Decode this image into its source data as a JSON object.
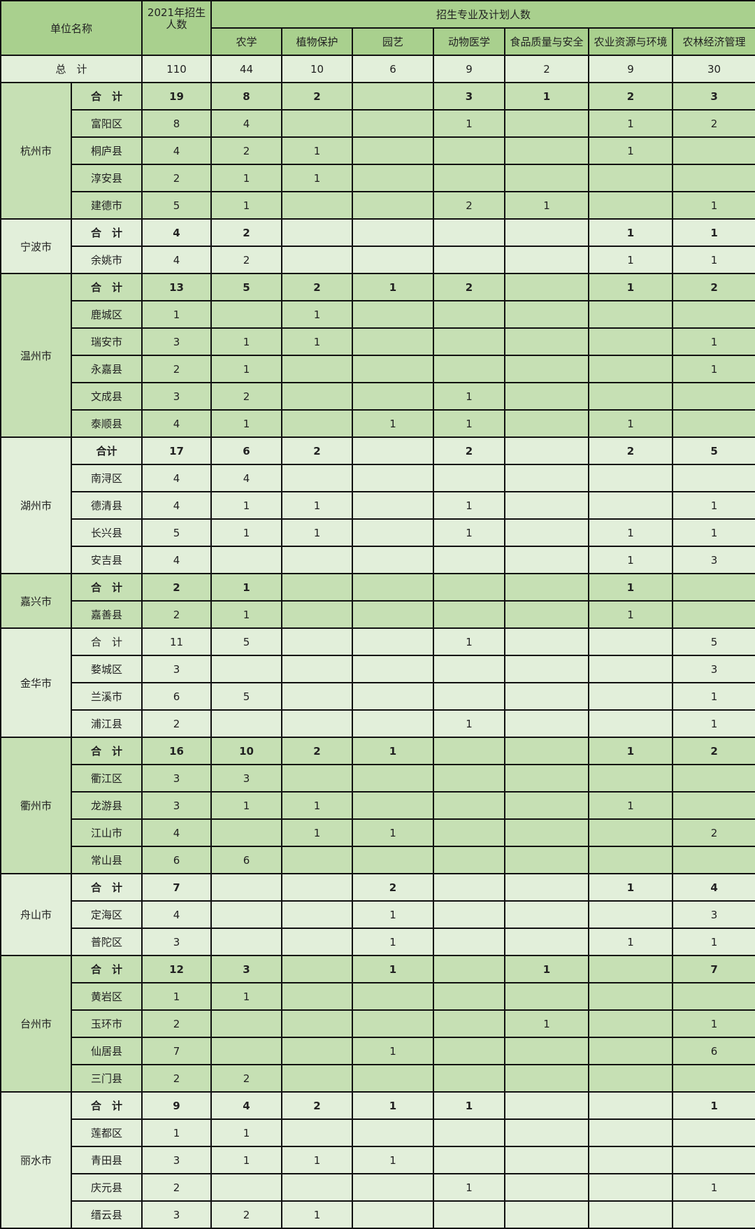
{
  "header": {
    "unit_name": "单位名称",
    "enroll_count": "2021年招生人数",
    "group_title": "招生专业及计划人数",
    "majors": [
      "农学",
      "植物保护",
      "园艺",
      "动物医学",
      "食品质量与安全",
      "农业资源与环境",
      "农林经济管理"
    ]
  },
  "colors": {
    "header": "#a9d08e",
    "light": "#e2efda",
    "mid": "#c6e0b4",
    "border": "#111111"
  },
  "grand_total": {
    "label": "总　计",
    "values": [
      "110",
      "44",
      "10",
      "6",
      "9",
      "2",
      "9",
      "30"
    ]
  },
  "cities": [
    {
      "name": "杭州市",
      "shade": "mid",
      "rows": [
        {
          "label": "合　计",
          "bold": true,
          "values": [
            "19",
            "8",
            "2",
            "",
            "3",
            "1",
            "2",
            "3"
          ]
        },
        {
          "label": "富阳区",
          "values": [
            "8",
            "4",
            "",
            "",
            "1",
            "",
            "1",
            "2"
          ]
        },
        {
          "label": "桐庐县",
          "values": [
            "4",
            "2",
            "1",
            "",
            "",
            "",
            "1",
            ""
          ]
        },
        {
          "label": "淳安县",
          "values": [
            "2",
            "1",
            "1",
            "",
            "",
            "",
            "",
            ""
          ]
        },
        {
          "label": "建德市",
          "values": [
            "5",
            "1",
            "",
            "",
            "2",
            "1",
            "",
            "1"
          ]
        }
      ]
    },
    {
      "name": "宁波市",
      "shade": "light",
      "rows": [
        {
          "label": "合　计",
          "bold": true,
          "values": [
            "4",
            "2",
            "",
            "",
            "",
            "",
            "1",
            "1"
          ]
        },
        {
          "label": "余姚市",
          "values": [
            "4",
            "2",
            "",
            "",
            "",
            "",
            "1",
            "1"
          ]
        }
      ]
    },
    {
      "name": "温州市",
      "shade": "mid",
      "rows": [
        {
          "label": "合　计",
          "bold": true,
          "values": [
            "13",
            "5",
            "2",
            "1",
            "2",
            "",
            "1",
            "2"
          ]
        },
        {
          "label": "鹿城区",
          "values": [
            "1",
            "",
            "1",
            "",
            "",
            "",
            "",
            ""
          ]
        },
        {
          "label": "瑞安市",
          "values": [
            "3",
            "1",
            "1",
            "",
            "",
            "",
            "",
            "1"
          ]
        },
        {
          "label": "永嘉县",
          "values": [
            "2",
            "1",
            "",
            "",
            "",
            "",
            "",
            "1"
          ]
        },
        {
          "label": "文成县",
          "values": [
            "3",
            "2",
            "",
            "",
            "1",
            "",
            "",
            ""
          ]
        },
        {
          "label": "泰顺县",
          "values": [
            "4",
            "1",
            "",
            "1",
            "1",
            "",
            "1",
            ""
          ]
        }
      ]
    },
    {
      "name": "湖州市",
      "shade": "light",
      "rows": [
        {
          "label": "合计",
          "bold": true,
          "values": [
            "17",
            "6",
            "2",
            "",
            "2",
            "",
            "2",
            "5"
          ]
        },
        {
          "label": "南浔区",
          "values": [
            "4",
            "4",
            "",
            "",
            "",
            "",
            "",
            ""
          ]
        },
        {
          "label": "德清县",
          "values": [
            "4",
            "1",
            "1",
            "",
            "1",
            "",
            "",
            "1"
          ]
        },
        {
          "label": "长兴县",
          "values": [
            "5",
            "1",
            "1",
            "",
            "1",
            "",
            "1",
            "1"
          ]
        },
        {
          "label": "安吉县",
          "values": [
            "4",
            "",
            "",
            "",
            "",
            "",
            "1",
            "3"
          ]
        }
      ]
    },
    {
      "name": "嘉兴市",
      "shade": "mid",
      "rows": [
        {
          "label": "合　计",
          "bold": true,
          "values": [
            "2",
            "1",
            "",
            "",
            "",
            "",
            "1",
            ""
          ]
        },
        {
          "label": "嘉善县",
          "values": [
            "2",
            "1",
            "",
            "",
            "",
            "",
            "1",
            ""
          ]
        }
      ]
    },
    {
      "name": "金华市",
      "shade": "light",
      "rows": [
        {
          "label": "合　计",
          "values": [
            "11",
            "5",
            "",
            "",
            "1",
            "",
            "",
            "5"
          ]
        },
        {
          "label": "婺城区",
          "values": [
            "3",
            "",
            "",
            "",
            "",
            "",
            "",
            "3"
          ]
        },
        {
          "label": "兰溪市",
          "values": [
            "6",
            "5",
            "",
            "",
            "",
            "",
            "",
            "1"
          ]
        },
        {
          "label": "浦江县",
          "values": [
            "2",
            "",
            "",
            "",
            "1",
            "",
            "",
            "1"
          ]
        }
      ]
    },
    {
      "name": "衢州市",
      "shade": "mid",
      "rows": [
        {
          "label": "合　计",
          "bold": true,
          "values": [
            "16",
            "10",
            "2",
            "1",
            "",
            "",
            "1",
            "2"
          ]
        },
        {
          "label": "衢江区",
          "values": [
            "3",
            "3",
            "",
            "",
            "",
            "",
            "",
            ""
          ]
        },
        {
          "label": "龙游县",
          "values": [
            "3",
            "1",
            "1",
            "",
            "",
            "",
            "1",
            ""
          ]
        },
        {
          "label": "江山市",
          "values": [
            "4",
            "",
            "1",
            "1",
            "",
            "",
            "",
            "2"
          ]
        },
        {
          "label": "常山县",
          "values": [
            "6",
            "6",
            "",
            "",
            "",
            "",
            "",
            ""
          ]
        }
      ]
    },
    {
      "name": "舟山市",
      "shade": "light",
      "rows": [
        {
          "label": "合　计",
          "bold": true,
          "values": [
            "7",
            "",
            "",
            "2",
            "",
            "",
            "1",
            "4"
          ]
        },
        {
          "label": "定海区",
          "values": [
            "4",
            "",
            "",
            "1",
            "",
            "",
            "",
            "3"
          ]
        },
        {
          "label": "普陀区",
          "values": [
            "3",
            "",
            "",
            "1",
            "",
            "",
            "1",
            "1"
          ]
        }
      ]
    },
    {
      "name": "台州市",
      "shade": "mid",
      "rows": [
        {
          "label": "合　计",
          "bold": true,
          "values": [
            "12",
            "3",
            "",
            "1",
            "",
            "1",
            "",
            "7"
          ]
        },
        {
          "label": "黄岩区",
          "values": [
            "1",
            "1",
            "",
            "",
            "",
            "",
            "",
            ""
          ]
        },
        {
          "label": "玉环市",
          "values": [
            "2",
            "",
            "",
            "",
            "",
            "1",
            "",
            "1"
          ]
        },
        {
          "label": "仙居县",
          "values": [
            "7",
            "",
            "",
            "1",
            "",
            "",
            "",
            "6"
          ]
        },
        {
          "label": "三门县",
          "values": [
            "2",
            "2",
            "",
            "",
            "",
            "",
            "",
            ""
          ]
        }
      ]
    },
    {
      "name": "丽水市",
      "shade": "light",
      "rows": [
        {
          "label": "合　计",
          "bold": true,
          "values": [
            "9",
            "4",
            "2",
            "1",
            "1",
            "",
            "",
            "1"
          ]
        },
        {
          "label": "莲都区",
          "values": [
            "1",
            "1",
            "",
            "",
            "",
            "",
            "",
            ""
          ]
        },
        {
          "label": "青田县",
          "values": [
            "3",
            "1",
            "1",
            "1",
            "",
            "",
            "",
            ""
          ]
        },
        {
          "label": "庆元县",
          "values": [
            "2",
            "",
            "",
            "",
            "1",
            "",
            "",
            "1"
          ]
        },
        {
          "label": "缙云县",
          "values": [
            "3",
            "2",
            "1",
            "",
            "",
            "",
            "",
            ""
          ]
        }
      ]
    }
  ]
}
